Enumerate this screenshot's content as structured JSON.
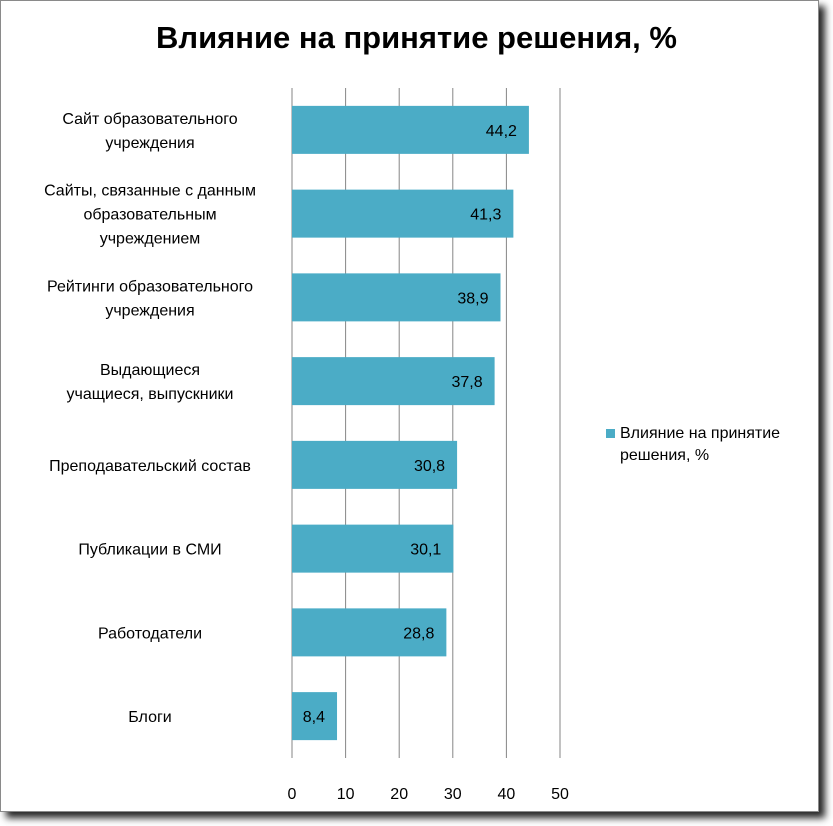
{
  "colors": {
    "bar": "#4bacc6",
    "grid": "#868686",
    "text": "#000000"
  },
  "chart_data": {
    "type": "bar",
    "orientation": "horizontal",
    "title": "Влияние на принятие решения, %",
    "categories": [
      "Сайт образовательного учреждения",
      "Сайты, связанные с данным образовательным учреждением",
      "Рейтинги образовательного учреждения",
      "Выдающиеся учащиеся, выпускники",
      "Преподавательский состав",
      "Публикации в СМИ",
      "Работодатели",
      "Блоги"
    ],
    "category_lines": [
      [
        "Сайт образовательного",
        "учреждения"
      ],
      [
        "Сайты, связанные с данным",
        "образовательным",
        "учреждением"
      ],
      [
        "Рейтинги образовательного",
        "учреждения"
      ],
      [
        "Выдающиеся",
        "учащиеся, выпускники"
      ],
      [
        "Преподавательский состав"
      ],
      [
        "Публикации в СМИ"
      ],
      [
        "Работодатели"
      ],
      [
        "Блоги"
      ]
    ],
    "series": [
      {
        "name": "Влияние на принятие решения, %",
        "values": [
          44.2,
          41.3,
          38.9,
          37.8,
          30.8,
          30.1,
          28.8,
          8.4
        ]
      }
    ],
    "data_labels": [
      "44,2",
      "41,3",
      "38,9",
      "37,8",
      "30,8",
      "30,1",
      "28,8",
      "8,4"
    ],
    "xlim": [
      0,
      50
    ],
    "x_ticks": [
      0,
      10,
      20,
      30,
      40,
      50
    ],
    "x_tick_labels": [
      "0",
      "10",
      "20",
      "30",
      "40",
      "50"
    ],
    "grid": true,
    "legend_position": "right",
    "legend_lines": [
      "Влияние на принятие",
      "решения, %"
    ]
  }
}
